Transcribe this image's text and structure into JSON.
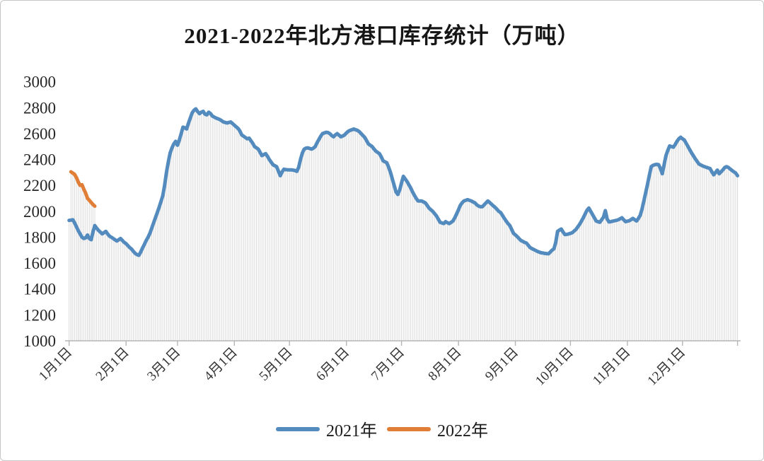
{
  "chart_data": {
    "type": "line",
    "title": "2021-2022年北方港口库存统计（万吨）",
    "xlabel": "",
    "ylabel": "",
    "unit": "万吨",
    "grid": false,
    "droplines": true,
    "legend_position": "bottom",
    "colors": {
      "series_2021": "#548BBE",
      "series_2022": "#E07E38",
      "dropline": "#DBDBDB",
      "axis": "#B5B5B5",
      "text": "#333333"
    },
    "y_axis": {
      "min": 1000,
      "max": 3000,
      "step": 200
    },
    "x_axis": {
      "tick_labels": [
        "1月1日",
        "2月1日",
        "3月1日",
        "4月1日",
        "5月1日",
        "6月1日",
        "7月1日",
        "8月1日",
        "9月1日",
        "10月1日",
        "11月1日",
        "12月1日"
      ],
      "tick_days": [
        0,
        31,
        59,
        90,
        120,
        151,
        181,
        212,
        243,
        273,
        304,
        334
      ],
      "axis_end_day": 364
    },
    "series": [
      {
        "name": "2021年",
        "color": "#548BBE",
        "start_day": 0,
        "values": [
          1930,
          1932,
          1935,
          1910,
          1880,
          1850,
          1825,
          1800,
          1790,
          1795,
          1817,
          1790,
          1781,
          1840,
          1890,
          1870,
          1853,
          1840,
          1826,
          1835,
          1845,
          1825,
          1808,
          1800,
          1790,
          1780,
          1771,
          1780,
          1790,
          1775,
          1760,
          1750,
          1735,
          1720,
          1708,
          1690,
          1675,
          1665,
          1660,
          1685,
          1717,
          1745,
          1775,
          1800,
          1830,
          1870,
          1910,
          1950,
          1990,
          2030,
          2075,
          2120,
          2200,
          2300,
          2380,
          2450,
          2490,
          2520,
          2540,
          2510,
          2550,
          2600,
          2650,
          2645,
          2636,
          2680,
          2720,
          2760,
          2780,
          2791,
          2770,
          2754,
          2765,
          2772,
          2750,
          2745,
          2765,
          2755,
          2735,
          2728,
          2720,
          2715,
          2709,
          2700,
          2690,
          2686,
          2682,
          2686,
          2690,
          2678,
          2665,
          2652,
          2640,
          2620,
          2590,
          2580,
          2570,
          2560,
          2565,
          2545,
          2525,
          2500,
          2490,
          2480,
          2455,
          2430,
          2438,
          2445,
          2425,
          2400,
          2380,
          2360,
          2352,
          2345,
          2310,
          2275,
          2305,
          2325,
          2322,
          2320,
          2320,
          2320,
          2318,
          2315,
          2308,
          2340,
          2400,
          2450,
          2480,
          2488,
          2490,
          2485,
          2480,
          2488,
          2500,
          2530,
          2555,
          2580,
          2600,
          2605,
          2610,
          2608,
          2600,
          2585,
          2575,
          2590,
          2600,
          2588,
          2575,
          2582,
          2590,
          2605,
          2618,
          2625,
          2630,
          2635,
          2630,
          2625,
          2615,
          2600,
          2585,
          2570,
          2545,
          2520,
          2510,
          2500,
          2482,
          2465,
          2455,
          2445,
          2420,
          2390,
          2382,
          2375,
          2340,
          2300,
          2250,
          2200,
          2150,
          2130,
          2165,
          2220,
          2270,
          2250,
          2230,
          2205,
          2180,
          2150,
          2125,
          2100,
          2080,
          2080,
          2080,
          2072,
          2065,
          2045,
          2025,
          2012,
          2000,
          1982,
          1965,
          1940,
          1915,
          1910,
          1905,
          1920,
          1912,
          1905,
          1915,
          1925,
          1950,
          1980,
          2012,
          2045,
          2065,
          2080,
          2085,
          2090,
          2085,
          2080,
          2072,
          2065,
          2050,
          2040,
          2035,
          2035,
          2050,
          2065,
          2080,
          2068,
          2055,
          2042,
          2030,
          2015,
          2000,
          1990,
          1968,
          1945,
          1925,
          1905,
          1890,
          1860,
          1830,
          1818,
          1805,
          1790,
          1775,
          1768,
          1760,
          1755,
          1738,
          1720,
          1712,
          1705,
          1698,
          1690,
          1685,
          1680,
          1678,
          1675,
          1673,
          1672,
          1685,
          1700,
          1710,
          1760,
          1845,
          1855,
          1863,
          1840,
          1820,
          1822,
          1825,
          1830,
          1835,
          1848,
          1860,
          1880,
          1900,
          1925,
          1950,
          1980,
          2008,
          2025,
          2000,
          1975,
          1950,
          1925,
          1920,
          1915,
          1935,
          1955,
          2005,
          1940,
          1918,
          1920,
          1924,
          1927,
          1930,
          1935,
          1942,
          1950,
          1935,
          1920,
          1924,
          1927,
          1936,
          1945,
          1935,
          1925,
          1945,
          1970,
          2020,
          2080,
          2145,
          2210,
          2280,
          2345,
          2355,
          2360,
          2362,
          2360,
          2330,
          2290,
          2360,
          2430,
          2470,
          2505,
          2500,
          2495,
          2515,
          2540,
          2560,
          2572,
          2560,
          2550,
          2525,
          2500,
          2475,
          2450,
          2428,
          2405,
          2385,
          2365,
          2358,
          2350,
          2345,
          2340,
          2335,
          2330,
          2305,
          2282,
          2300,
          2318,
          2290,
          2305,
          2320,
          2338,
          2345,
          2338,
          2326,
          2315,
          2305,
          2295,
          2275
        ]
      },
      {
        "name": "2022年",
        "color": "#E07E38",
        "start_day": 1,
        "values": [
          2305,
          2295,
          2285,
          2260,
          2225,
          2200,
          2205,
          2170,
          2140,
          2100,
          2085,
          2068,
          2052,
          2040
        ]
      }
    ]
  }
}
